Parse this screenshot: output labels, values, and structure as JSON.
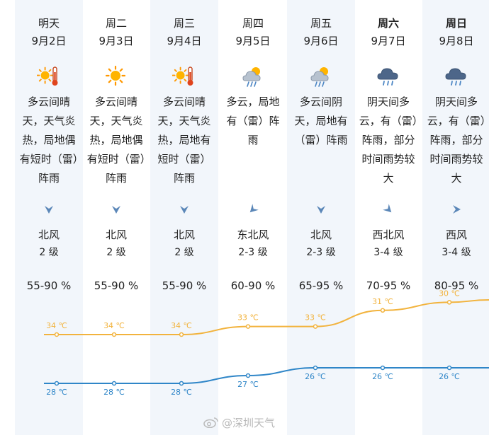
{
  "days": [
    {
      "day": "明天",
      "date": "9月2日",
      "icon": "partly-sunny-hot-icon",
      "desc": "多云间晴天，天气炎热，局地偶有短时（雷）阵雨",
      "wind_dir": "北风",
      "wind_level": "2 级",
      "arrow": "down",
      "humidity": "55-90 %",
      "high": 34,
      "high_label": "34 ℃",
      "low": 28,
      "low_label": "28 ℃",
      "bold": false
    },
    {
      "day": "周二",
      "date": "9月3日",
      "icon": "sunny-icon",
      "desc": "多云间晴天，天气炎热，局地偶有短时（雷）阵雨",
      "wind_dir": "北风",
      "wind_level": "2 级",
      "arrow": "down",
      "humidity": "55-90 %",
      "high": 34,
      "high_label": "34 ℃",
      "low": 28,
      "low_label": "28 ℃",
      "bold": false
    },
    {
      "day": "周三",
      "date": "9月4日",
      "icon": "partly-sunny-hot-icon",
      "desc": "多云间晴天，天气炎热，局地有短时（雷）阵雨",
      "wind_dir": "北风",
      "wind_level": "2 级",
      "arrow": "down",
      "humidity": "55-90 %",
      "high": 34,
      "high_label": "34 ℃",
      "low": 28,
      "low_label": "28 ℃",
      "bold": false
    },
    {
      "day": "周四",
      "date": "9月5日",
      "icon": "cloudy-thunder-rain-icon",
      "desc": "多云，局地有（雷）阵雨",
      "wind_dir": "东北风",
      "wind_level": "2-3 级",
      "arrow": "down-left",
      "humidity": "60-90 %",
      "high": 33,
      "high_label": "33 ℃",
      "low": 27,
      "low_label": "27 ℃",
      "bold": false
    },
    {
      "day": "周五",
      "date": "9月6日",
      "icon": "cloudy-thunder-rain-icon",
      "desc": "多云间阴天，局地有（雷）阵雨",
      "wind_dir": "北风",
      "wind_level": "2-3 级",
      "arrow": "down",
      "humidity": "65-95 %",
      "high": 33,
      "high_label": "33 ℃",
      "low": 26,
      "low_label": "26 ℃",
      "bold": false
    },
    {
      "day": "周六",
      "date": "9月7日",
      "icon": "dark-cloud-rain-icon",
      "desc": "阴天间多云，有（雷）阵雨，部分时间雨势较大",
      "wind_dir": "西北风",
      "wind_level": "3-4 级",
      "arrow": "down-right",
      "humidity": "70-95 %",
      "high": 31,
      "high_label": "31 ℃",
      "low": 26,
      "low_label": "26 ℃",
      "bold": true
    },
    {
      "day": "周日",
      "date": "9月8日",
      "icon": "dark-cloud-rain-icon",
      "desc": "阴天间多云，有（雷）阵雨，部分时间雨势较大",
      "wind_dir": "西风",
      "wind_level": "3-4 级",
      "arrow": "right",
      "humidity": "80-95 %",
      "high": 30,
      "high_label": "30 ℃",
      "low": 26,
      "low_label": "26 ℃",
      "bold": true
    }
  ],
  "colors": {
    "high_line": "#f2b33d",
    "low_line": "#2f86c8",
    "arrow": "#5b87b8",
    "column_shade": "#f2f6fb"
  },
  "watermark": {
    "text": "@深圳天气",
    "icon": "weibo-icon"
  }
}
